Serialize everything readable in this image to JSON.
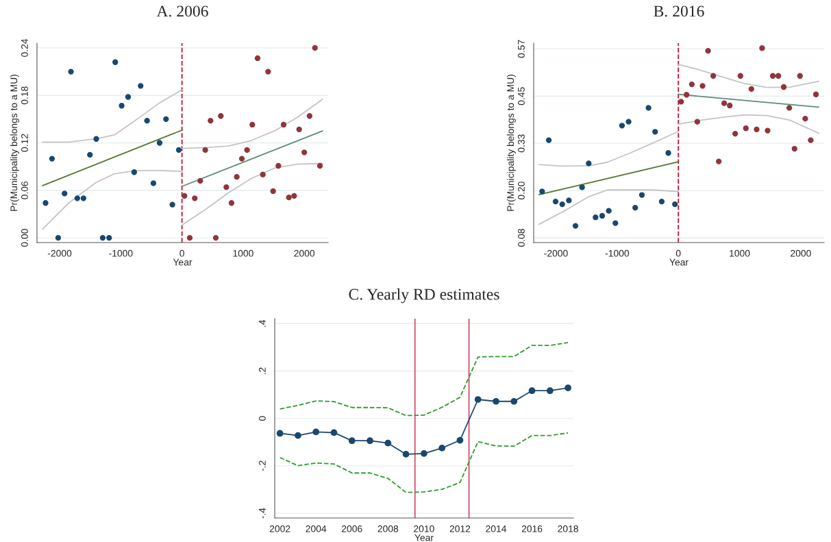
{
  "chart_data": [
    {
      "type": "scatter",
      "title": "A. 2006",
      "xlabel": "Year",
      "ylabel": "Pr(Municipality belongs to a MU)",
      "xlim": [
        -2370,
        2390
      ],
      "ylim": [
        -0.006,
        0.246
      ],
      "xticks": [
        -2000,
        -1000,
        0,
        1000,
        2000
      ],
      "yticks": [
        {
          "value": 0,
          "label": "0.00"
        },
        0.06,
        0.12,
        0.18,
        0.24
      ],
      "grid": "y",
      "ref_lines": [
        {
          "axis": "x",
          "value": 0,
          "color": "#c8102e",
          "line_style": "dashed"
        }
      ],
      "series": [
        {
          "marker": "circle",
          "color": "#1a476f",
          "x": [
            -2230,
            -2125,
            -2024,
            -1920,
            -1815,
            -1711,
            -1610,
            -1505,
            -1401,
            -1296,
            -1191,
            -1091,
            -986,
            -881,
            -781,
            -676,
            -571,
            -467,
            -366,
            -261,
            -157,
            -52
          ],
          "values": [
            0.044,
            0.1,
            0,
            0.056,
            0.21,
            0.05,
            0.05,
            0.105,
            0.125,
            0,
            0,
            0.222,
            0.167,
            0.178,
            0.083,
            0.192,
            0.148,
            0.069,
            0.12,
            0.15,
            0.042,
            0.111
          ]
        },
        {
          "marker": "circle",
          "color": "#90353b",
          "x": [
            41,
            127,
            209,
            299,
            381,
            467,
            553,
            635,
            725,
            810,
            896,
            979,
            1064,
            1150,
            1236,
            1322,
            1408,
            1490,
            1576,
            1662,
            1748,
            1834,
            1916,
            2000,
            2086,
            2174,
            2256
          ],
          "values": [
            0.053,
            0,
            0.05,
            0.072,
            0.111,
            0.148,
            0,
            0.154,
            0.064,
            0.044,
            0.077,
            0.1,
            0.111,
            0.143,
            0.227,
            0.08,
            0.21,
            0.059,
            0.091,
            0.143,
            0.051,
            0.053,
            0.137,
            0.108,
            0.154,
            0.24,
            0.091
          ]
        },
        {
          "type": "line",
          "color": "#55752f",
          "x": [
            -2278,
            0
          ],
          "values": [
            0.066,
            0.136
          ]
        },
        {
          "type": "line",
          "color": "#5f8a78",
          "x": [
            0,
            2297
          ],
          "values": [
            0.065,
            0.135
          ]
        },
        {
          "type": "line",
          "color": "#c4c4c4",
          "x": [
            -2278,
            -1852,
            -1404,
            -1105,
            -732,
            -359,
            0
          ],
          "values": [
            0.121,
            0.121,
            0.125,
            0.13,
            0.15,
            0.171,
            0.187
          ]
        },
        {
          "type": "line",
          "color": "#c4c4c4",
          "x": [
            -2278,
            -1852,
            -1404,
            -1105,
            -732,
            -359,
            0
          ],
          "values": [
            0.011,
            0.044,
            0.07,
            0.081,
            0.085,
            0.085,
            0.084
          ]
        },
        {
          "type": "line",
          "color": "#c4c4c4",
          "x": [
            0,
            388,
            762,
            1135,
            1509,
            1882,
            2297
          ],
          "values": [
            0.113,
            0.114,
            0.116,
            0.123,
            0.135,
            0.152,
            0.175
          ]
        },
        {
          "type": "line",
          "color": "#c4c4c4",
          "x": [
            0,
            388,
            762,
            1135,
            1509,
            1882,
            2297
          ],
          "values": [
            0.016,
            0.036,
            0.057,
            0.075,
            0.088,
            0.093,
            0.094
          ]
        }
      ]
    },
    {
      "type": "scatter",
      "title": "B. 2016",
      "xlabel": "Year",
      "ylabel": "Pr(Municipality belongs to a MU)",
      "xlim": [
        -2364,
        2382
      ],
      "ylim": [
        0.0676,
        0.5848
      ],
      "xticks": [
        -2000,
        -1000,
        0,
        1000,
        2000
      ],
      "yticks": [
        {
          "value": 0.08,
          "label": "0.08"
        },
        {
          "value": 0.2025,
          "label": "0.20"
        },
        {
          "value": 0.325,
          "label": "0.33"
        },
        {
          "value": 0.4475,
          "label": "0.45"
        },
        {
          "value": 0.57,
          "label": "0.57"
        }
      ],
      "grid": "y",
      "ref_lines": [
        {
          "axis": "x",
          "value": 0,
          "color": "#c8102e",
          "line_style": "dashed"
        }
      ],
      "series": [
        {
          "marker": "circle",
          "color": "#1a476f",
          "x": [
            -2226,
            -2117,
            -2006,
            -1897,
            -1789,
            -1681,
            -1573,
            -1465,
            -1353,
            -1245,
            -1137,
            -1029,
            -921,
            -813,
            -705,
            -596,
            -488,
            -380,
            -272,
            -164,
            -56
          ],
          "values": [
            0.2,
            0.333,
            0.174,
            0.167,
            0.177,
            0.111,
            0.211,
            0.273,
            0.133,
            0.137,
            0.15,
            0.118,
            0.371,
            0.381,
            0.158,
            0.191,
            0.417,
            0.355,
            0.174,
            0.3,
            0.167
          ]
        },
        {
          "marker": "circle",
          "color": "#90353b",
          "x": [
            45,
            134,
            220,
            309,
            395,
            485,
            570,
            660,
            749,
            839,
            928,
            1014,
            1103,
            1193,
            1279,
            1368,
            1458,
            1543,
            1633,
            1722,
            1812,
            1898,
            1987,
            2073,
            2162,
            2248
          ],
          "values": [
            0.433,
            0.451,
            0.478,
            0.381,
            0.474,
            0.565,
            0.5,
            0.278,
            0.429,
            0.423,
            0.35,
            0.5,
            0.364,
            0.466,
            0.361,
            0.572,
            0.358,
            0.5,
            0.5,
            0.471,
            0.417,
            0.311,
            0.5,
            0.389,
            0.333,
            0.452
          ]
        },
        {
          "type": "line",
          "color": "#55752f",
          "x": [
            -2278,
            0
          ],
          "values": [
            0.192,
            0.277
          ]
        },
        {
          "type": "line",
          "color": "#5f8a78",
          "x": [
            0,
            2296
          ],
          "values": [
            0.452,
            0.419
          ]
        },
        {
          "type": "line",
          "color": "#c4c4c4",
          "x": [
            -2278,
            -1905,
            -1458,
            -1159,
            -787,
            -414,
            0
          ],
          "values": [
            0.27,
            0.266,
            0.267,
            0.276,
            0.3,
            0.326,
            0.356
          ]
        },
        {
          "type": "line",
          "color": "#c4c4c4",
          "x": [
            -2278,
            -1905,
            -1458,
            -1159,
            -787,
            -414,
            0
          ],
          "values": [
            0.115,
            0.146,
            0.187,
            0.204,
            0.204,
            0.204,
            0.2
          ]
        },
        {
          "type": "line",
          "color": "#c4c4c4",
          "x": [
            0,
            332,
            705,
            1077,
            1450,
            1823,
            2296
          ],
          "values": [
            0.53,
            0.516,
            0.498,
            0.48,
            0.47,
            0.471,
            0.486
          ]
        },
        {
          "type": "line",
          "color": "#c4c4c4",
          "x": [
            0,
            332,
            705,
            1077,
            1450,
            1823,
            2296
          ],
          "values": [
            0.375,
            0.384,
            0.392,
            0.399,
            0.397,
            0.385,
            0.351
          ]
        }
      ]
    },
    {
      "type": "line",
      "title": "C. Yearly RD estimates",
      "xlabel": "Year",
      "xlim": [
        2001.71,
        2018.3
      ],
      "ylim": [
        -0.42,
        0.421
      ],
      "xticks": [
        2002,
        2004,
        2006,
        2008,
        2010,
        2012,
        2014,
        2016,
        2018
      ],
      "yticks": [
        {
          "value": -0.4,
          "label": "-.4"
        },
        {
          "value": -0.2,
          "label": "-.2"
        },
        0,
        {
          "value": 0.2,
          "label": ".2"
        },
        {
          "value": 0.4,
          "label": ".4"
        }
      ],
      "grid": "y",
      "ref_lines": [
        {
          "axis": "x",
          "value": 2009.5,
          "color": "#d4506e",
          "line_style": "solid"
        },
        {
          "axis": "x",
          "value": 2012.5,
          "color": "#d4506e",
          "line_style": "solid"
        }
      ],
      "x": [
        2002,
        2003,
        2004,
        2005,
        2006,
        2007,
        2008,
        2009,
        2010,
        2011,
        2012,
        2013,
        2014,
        2015,
        2016,
        2017,
        2018
      ],
      "series": [
        {
          "color": "#2a9d2a",
          "line_style": "dashed",
          "values": [
            0.04,
            0.055,
            0.074,
            0.071,
            0.046,
            0.046,
            0.045,
            0.012,
            0.014,
            0.047,
            0.089,
            0.259,
            0.261,
            0.261,
            0.308,
            0.308,
            0.32
          ]
        },
        {
          "color": "#2a9d2a",
          "line_style": "dashed",
          "values": [
            -0.165,
            -0.199,
            -0.188,
            -0.192,
            -0.23,
            -0.23,
            -0.253,
            -0.312,
            -0.31,
            -0.299,
            -0.27,
            -0.098,
            -0.116,
            -0.117,
            -0.072,
            -0.072,
            -0.061
          ]
        },
        {
          "color": "#1a476f",
          "marker": "circle",
          "line_style": "solid",
          "values": [
            -0.063,
            -0.072,
            -0.057,
            -0.06,
            -0.094,
            -0.094,
            -0.104,
            -0.151,
            -0.148,
            -0.125,
            -0.092,
            0.08,
            0.072,
            0.072,
            0.117,
            0.117,
            0.129
          ]
        }
      ]
    }
  ]
}
